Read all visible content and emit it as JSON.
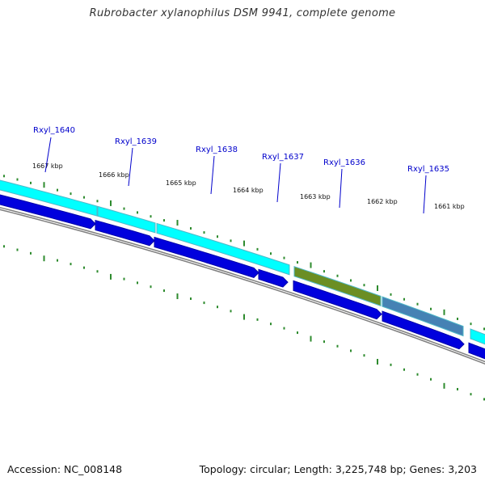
{
  "title": "Rubrobacter xylanophilus DSM 9941, complete genome",
  "footer": {
    "accession": "Accession: NC_008148",
    "summary": "Topology: circular; Length: 3,225,748 bp; Genes: 3,203"
  },
  "colors": {
    "tick": "#2e8b2e",
    "blue_arrow": "#0000dd",
    "cyan_feature": "#00ffff",
    "olive_feature": "#6b8e23",
    "steelblue_feature": "#4682b4",
    "backbone": "#808080",
    "label": "#0000cc"
  },
  "gene_labels": [
    {
      "name": "Rxyl_1640"
    },
    {
      "name": "Rxyl_1639"
    },
    {
      "name": "Rxyl_1638"
    },
    {
      "name": "Rxyl_1637"
    },
    {
      "name": "Rxyl_1636"
    },
    {
      "name": "Rxyl_1635"
    }
  ],
  "kbp_labels": [
    "1667 kbp",
    "1666 kbp",
    "1665 kbp",
    "1664 kbp",
    "1663 kbp",
    "1662 kbp",
    "1661 kbp"
  ]
}
